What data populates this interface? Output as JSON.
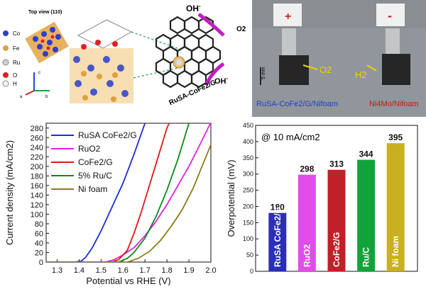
{
  "scheme": {
    "top_view_label": "Top view (110)",
    "elements": [
      "Co",
      "Fe",
      "Ru",
      "O",
      "H"
    ],
    "element_colors": [
      "#2a40c8",
      "#e0a040",
      "#cfcfcf",
      "#e02020",
      "#f4f4f4"
    ],
    "catalyst_label": "RuSA-CoFe2/G",
    "oh_label": "OH",
    "oh_sup": "-",
    "o2_label": "O2",
    "axis_labels": [
      "c",
      "a",
      "b"
    ]
  },
  "photo": {
    "plus_sign": "+",
    "minus_sign": "-",
    "left_electrode": "RuSA-CoFe2/G/Nifoam",
    "right_electrode": "Ni4Mo/Nifoam",
    "o2_label": "O2",
    "h2_label": "H2",
    "scale_label": "5 mm"
  },
  "chart_data": [
    {
      "type": "line",
      "xlabel": "Potential vs RHE (V)",
      "ylabel": "Current density (mA/cm2)",
      "xlim": [
        1.25,
        2.0
      ],
      "ylim": [
        0,
        290
      ],
      "xticks": [
        1.3,
        1.4,
        1.5,
        1.6,
        1.7,
        1.8,
        1.9,
        2.0
      ],
      "yticks": [
        0,
        20,
        40,
        60,
        80,
        100,
        120,
        140,
        160,
        180,
        200,
        220,
        240,
        260,
        280
      ],
      "legend_position": "top-left",
      "series": [
        {
          "name": "RuSA CoFe2/G",
          "color": "#1a2fd6",
          "points": [
            [
              1.25,
              0
            ],
            [
              1.38,
              0
            ],
            [
              1.41,
              2
            ],
            [
              1.43,
              10
            ],
            [
              1.46,
              30
            ],
            [
              1.5,
              65
            ],
            [
              1.55,
              115
            ],
            [
              1.6,
              165
            ],
            [
              1.65,
              225
            ],
            [
              1.7,
              290
            ]
          ]
        },
        {
          "name": "RuO2",
          "color": "#e020e0",
          "points": [
            [
              1.25,
              0
            ],
            [
              1.52,
              0
            ],
            [
              1.56,
              5
            ],
            [
              1.6,
              15
            ],
            [
              1.65,
              30
            ],
            [
              1.7,
              55
            ],
            [
              1.75,
              85
            ],
            [
              1.8,
              120
            ],
            [
              1.85,
              160
            ],
            [
              1.9,
              200
            ],
            [
              1.95,
              245
            ],
            [
              2.0,
              292
            ]
          ]
        },
        {
          "name": "CoFe2/G",
          "color": "#e01818",
          "points": [
            [
              1.25,
              0
            ],
            [
              1.55,
              0
            ],
            [
              1.58,
              5
            ],
            [
              1.62,
              25
            ],
            [
              1.65,
              60
            ],
            [
              1.68,
              100
            ],
            [
              1.72,
              160
            ],
            [
              1.76,
              220
            ],
            [
              1.8,
              280
            ],
            [
              1.81,
              290
            ]
          ]
        },
        {
          "name": "5% Ru/C",
          "color": "#0b8a1a",
          "points": [
            [
              1.25,
              0
            ],
            [
              1.58,
              0
            ],
            [
              1.62,
              8
            ],
            [
              1.65,
              20
            ],
            [
              1.7,
              50
            ],
            [
              1.75,
              95
            ],
            [
              1.8,
              150
            ],
            [
              1.85,
              215
            ],
            [
              1.9,
              290
            ]
          ]
        },
        {
          "name": "Ni foam",
          "color": "#8c7a1e",
          "points": [
            [
              1.25,
              0
            ],
            [
              1.62,
              0
            ],
            [
              1.67,
              8
            ],
            [
              1.72,
              22
            ],
            [
              1.77,
              45
            ],
            [
              1.82,
              75
            ],
            [
              1.87,
              110
            ],
            [
              1.92,
              155
            ],
            [
              1.96,
              200
            ],
            [
              2.0,
              245
            ]
          ]
        }
      ]
    },
    {
      "type": "bar",
      "annotation": "@ 10 mA/cm2",
      "ylabel": "Overpotential (mV)",
      "ylim": [
        0,
        450
      ],
      "yticks": [
        0,
        50,
        100,
        150,
        200,
        250,
        300,
        350,
        400,
        450
      ],
      "categories": [
        "RuSA CoFe2/G",
        "RuO2",
        "CoFe2/G",
        "Ru/C",
        "Ni foam"
      ],
      "values": [
        180,
        298,
        313,
        344,
        395
      ],
      "colors": [
        "#2b2fb8",
        "#e24de8",
        "#c02028",
        "#11a33a",
        "#c8b020"
      ]
    }
  ]
}
